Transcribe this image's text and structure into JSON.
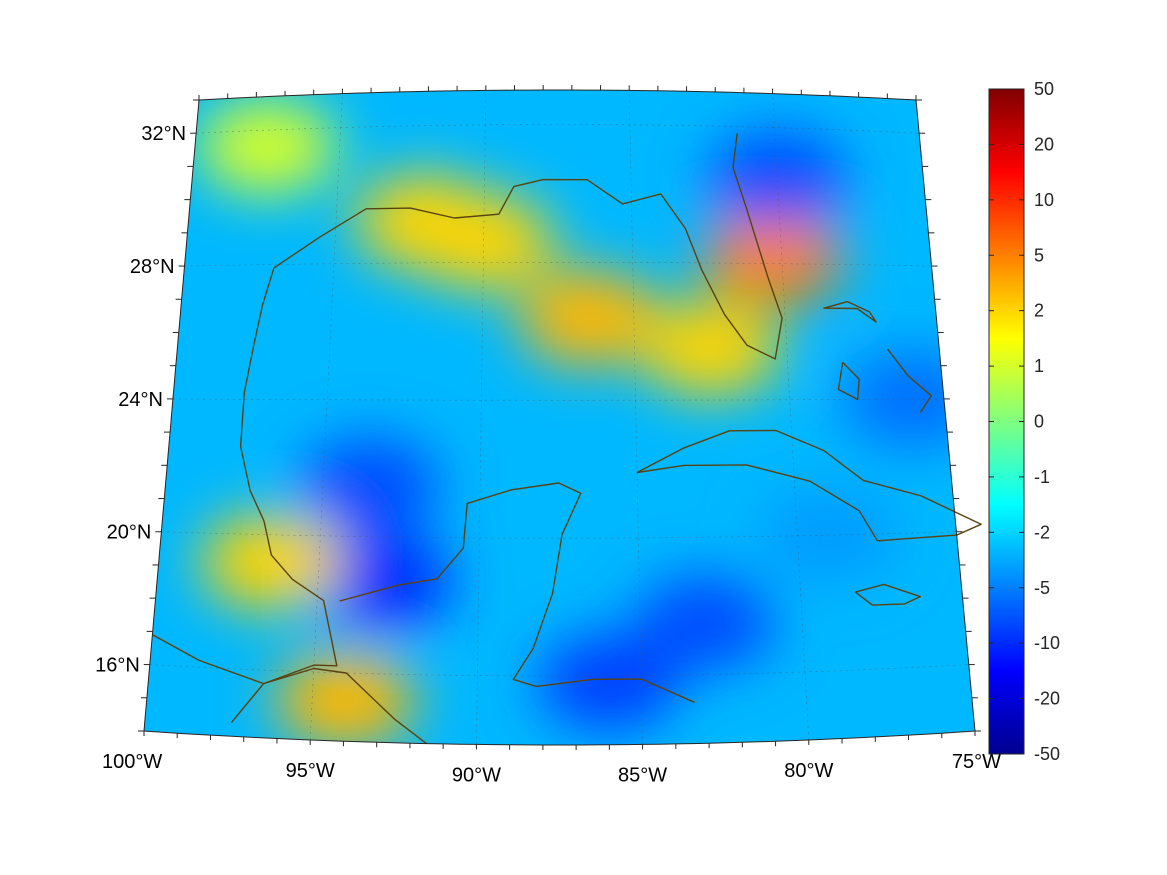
{
  "map": {
    "region": "Gulf of Mexico and Caribbean",
    "projection": "conic",
    "lon_range": [
      -100,
      -75
    ],
    "lat_range": [
      14,
      33
    ],
    "grid": true,
    "coastline_color": "#5a4210",
    "lat_labels": [
      {
        "value": 32,
        "text": "32°N"
      },
      {
        "value": 28,
        "text": "28°N"
      },
      {
        "value": 24,
        "text": "24°N"
      },
      {
        "value": 20,
        "text": "20°N"
      },
      {
        "value": 16,
        "text": "16°N"
      }
    ],
    "lon_labels": [
      {
        "value": -100,
        "text": "100°W"
      },
      {
        "value": -95,
        "text": "95°W"
      },
      {
        "value": -90,
        "text": "90°W"
      },
      {
        "value": -85,
        "text": "85°W"
      },
      {
        "value": -80,
        "text": "80°W"
      },
      {
        "value": -75,
        "text": "75°W"
      }
    ],
    "field": {
      "colormap": "jet",
      "background_level": -3,
      "features": [
        {
          "name": "northern-gulf-positive-band",
          "lon": -90.0,
          "lat": 28.6,
          "value": 2
        },
        {
          "name": "central-gulf-positive-patch",
          "lon": -86.5,
          "lat": 26.4,
          "value": 3
        },
        {
          "name": "louisiana-shelf-positive",
          "lon": -92.0,
          "lat": 29.2,
          "value": 2
        },
        {
          "name": "southwest-florida-positive",
          "lon": -82.5,
          "lat": 25.5,
          "value": 2
        },
        {
          "name": "atlantic-east-florida-maximum",
          "lon": -80.3,
          "lat": 28.2,
          "value": 5
        },
        {
          "name": "atlantic-northeast-minimum",
          "lon": -80.0,
          "lat": 30.5,
          "value": -8
        },
        {
          "name": "western-gulf-minimum",
          "lon": -93.5,
          "lat": 21.5,
          "value": -8
        },
        {
          "name": "bay-of-campeche-minimum",
          "lon": -93.0,
          "lat": 18.7,
          "value": -10
        },
        {
          "name": "veracruz-coast-positive",
          "lon": -96.5,
          "lat": 19.2,
          "value": 2
        },
        {
          "name": "tehuantepec-positive",
          "lon": -94.0,
          "lat": 15.2,
          "value": 3
        },
        {
          "name": "caribbean-west-minimum",
          "lon": -83.0,
          "lat": 17.5,
          "value": -8
        },
        {
          "name": "honduras-coast-minimum",
          "lon": -86.0,
          "lat": 15.8,
          "value": -9
        },
        {
          "name": "texas-interior-positive",
          "lon": -97.5,
          "lat": 31.5,
          "value": 1
        },
        {
          "name": "bahamas-minimum",
          "lon": -76.0,
          "lat": 24.0,
          "value": -6
        },
        {
          "name": "cuba-south-negative",
          "lon": -79.0,
          "lat": 20.0,
          "value": -4
        }
      ]
    }
  },
  "colorbar": {
    "ticks": [
      {
        "value": 50,
        "text": "50"
      },
      {
        "value": 20,
        "text": "20"
      },
      {
        "value": 10,
        "text": "10"
      },
      {
        "value": 5,
        "text": "5"
      },
      {
        "value": 2,
        "text": "2"
      },
      {
        "value": 1,
        "text": "1"
      },
      {
        "value": 0,
        "text": "0"
      },
      {
        "value": -1,
        "text": "-1"
      },
      {
        "value": -2,
        "text": "-2"
      },
      {
        "value": -5,
        "text": "-5"
      },
      {
        "value": -10,
        "text": "-10"
      },
      {
        "value": -20,
        "text": "-20"
      },
      {
        "value": -50,
        "text": "-50"
      }
    ],
    "scale": "symlog",
    "range": [
      -50,
      50
    ]
  }
}
